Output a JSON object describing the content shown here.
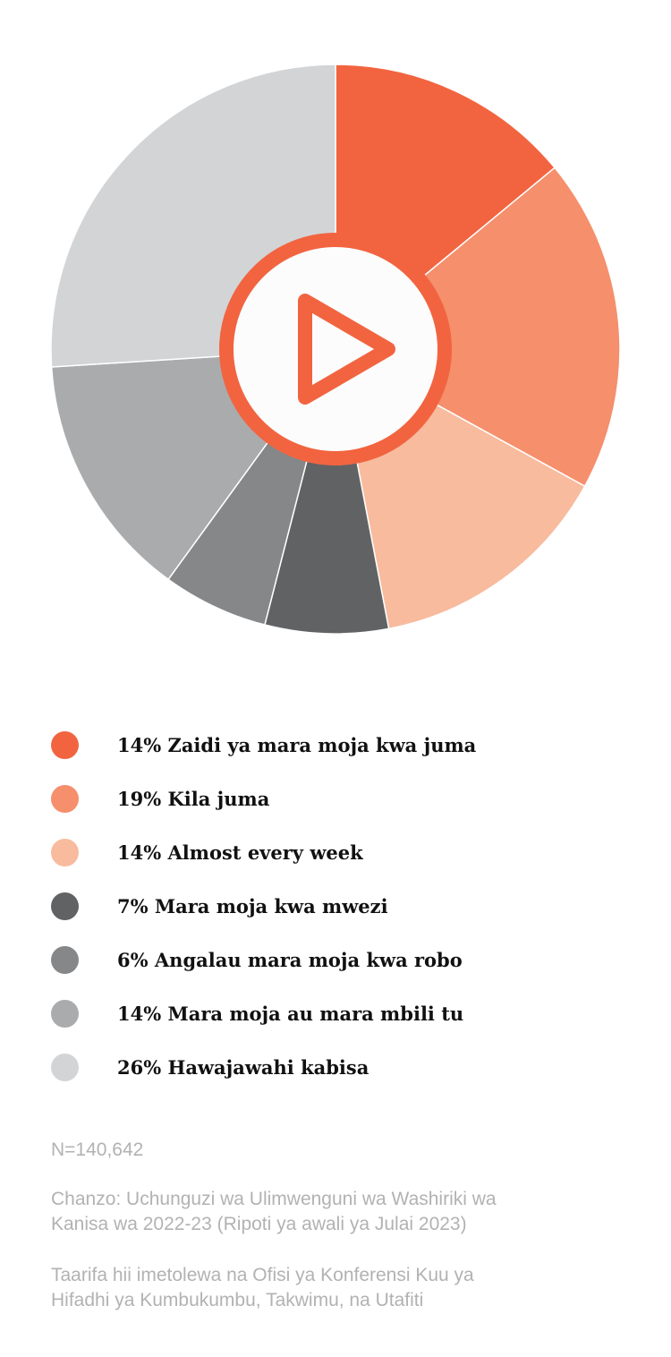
{
  "chart_data": {
    "type": "pie",
    "slices": [
      {
        "pct": 14,
        "text": "Zaidi ya mara moja kwa juma",
        "color": "#f26440"
      },
      {
        "pct": 19,
        "text": "Kila juma",
        "color": "#f58f6c"
      },
      {
        "pct": 14,
        "text": "Almost every week",
        "color": "#f8bb9e"
      },
      {
        "pct": 7,
        "text": "Mara moja kwa mwezi",
        "color": "#616264"
      },
      {
        "pct": 6,
        "text": "Angalau mara moja kwa robo",
        "color": "#868789"
      },
      {
        "pct": 14,
        "text": "Mara moja au mara mbili tu",
        "color": "#aaabad"
      },
      {
        "pct": 26,
        "text": "Hawajawahi kabisa",
        "color": "#d3d4d6"
      }
    ],
    "legend_placement": "bottom"
  },
  "play_button": {
    "icon": "play-icon",
    "color": "#f26440"
  },
  "footer": {
    "sample_size": "N=140,642",
    "source_line1": "Chanzo: Uchunguzi wa Ulimwenguni wa Washiriki wa",
    "source_line2": "Kanisa wa 2022-23 (Ripoti ya awali ya Julai 2023)",
    "note_line1": "Taarifa hii imetolewa na Ofisi ya Konferensi Kuu ya",
    "note_line2": "Hifadhi ya Kumbukumbu, Takwimu, na Utafiti"
  }
}
